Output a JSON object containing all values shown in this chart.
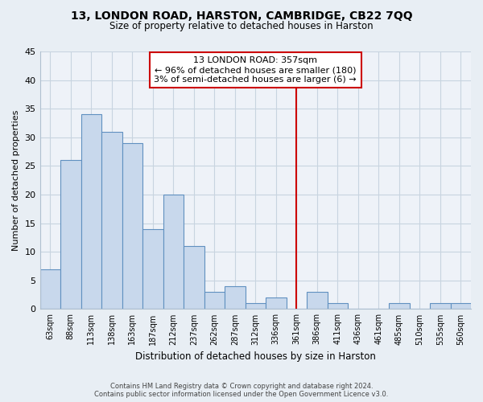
{
  "title": "13, LONDON ROAD, HARSTON, CAMBRIDGE, CB22 7QQ",
  "subtitle": "Size of property relative to detached houses in Harston",
  "xlabel": "Distribution of detached houses by size in Harston",
  "ylabel": "Number of detached properties",
  "bar_labels": [
    "63sqm",
    "88sqm",
    "113sqm",
    "138sqm",
    "163sqm",
    "187sqm",
    "212sqm",
    "237sqm",
    "262sqm",
    "287sqm",
    "312sqm",
    "336sqm",
    "361sqm",
    "386sqm",
    "411sqm",
    "436sqm",
    "461sqm",
    "485sqm",
    "510sqm",
    "535sqm",
    "560sqm"
  ],
  "bar_heights": [
    7,
    26,
    34,
    31,
    29,
    14,
    20,
    11,
    3,
    4,
    1,
    2,
    0,
    3,
    1,
    0,
    0,
    1,
    0,
    1,
    1
  ],
  "bar_color": "#c8d8ec",
  "bar_edge_color": "#6090c0",
  "highlight_line_color": "#cc0000",
  "ylim": [
    0,
    45
  ],
  "yticks": [
    0,
    5,
    10,
    15,
    20,
    25,
    30,
    35,
    40,
    45
  ],
  "annotation_title": "13 LONDON ROAD: 357sqm",
  "annotation_line1": "← 96% of detached houses are smaller (180)",
  "annotation_line2": "3% of semi-detached houses are larger (6) →",
  "footer1": "Contains HM Land Registry data © Crown copyright and database right 2024.",
  "footer2": "Contains public sector information licensed under the Open Government Licence v3.0.",
  "background_color": "#e8eef4",
  "plot_background_color": "#eef2f8",
  "grid_color": "#c8d4e0"
}
